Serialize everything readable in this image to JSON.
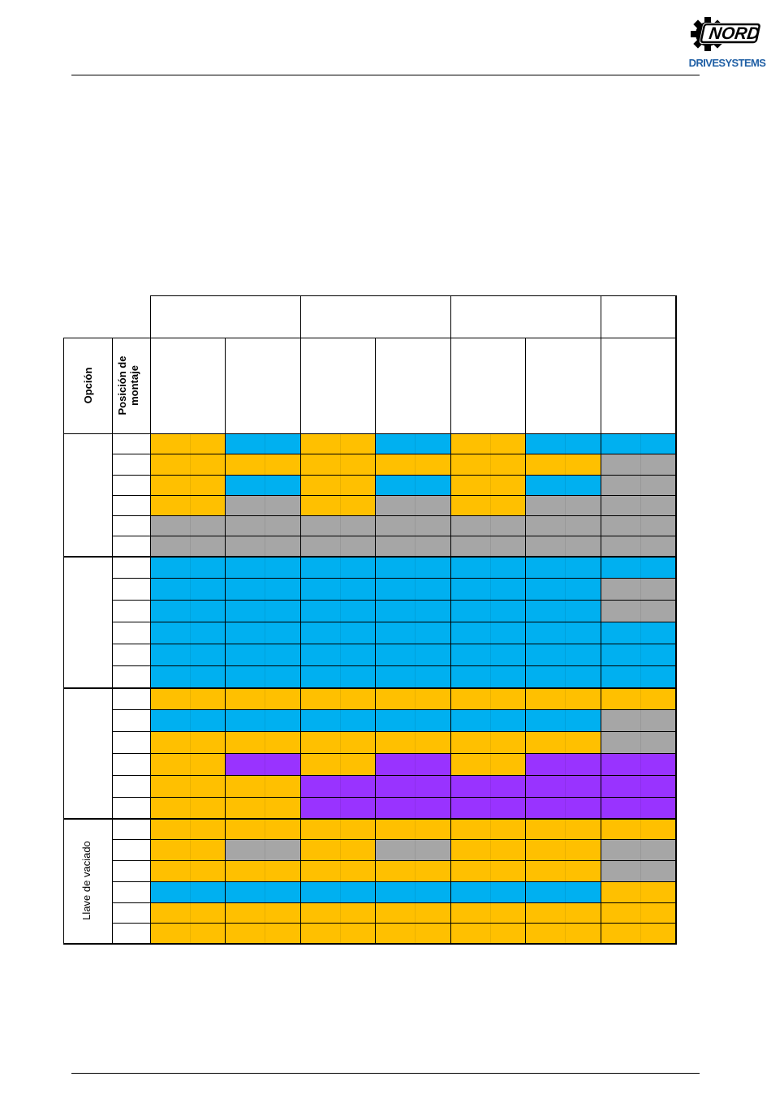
{
  "brand": {
    "logo_text": "NORD",
    "logo_subtitle": "DRIVESYSTEMS"
  },
  "table": {
    "header": {
      "option": "Opción",
      "mounting_position": "Posición de montaje"
    },
    "groups": [
      {
        "label": "",
        "rows": 6
      },
      {
        "label": "",
        "rows": 6
      },
      {
        "label": "",
        "rows": 6
      },
      {
        "label": "Llave de vaciado",
        "rows": 6
      }
    ],
    "colors": {
      "Y": "#ffc000",
      "B": "#00b0f0",
      "G": "#a6a6a6",
      "P": "#9933ff"
    },
    "rows": [
      [
        "Y",
        "B",
        "Y",
        "B",
        "Y",
        "B",
        "B"
      ],
      [
        "Y",
        "Y",
        "Y",
        "Y",
        "Y",
        "Y",
        "G"
      ],
      [
        "Y",
        "B",
        "Y",
        "B",
        "Y",
        "B",
        "G"
      ],
      [
        "Y",
        "G",
        "Y",
        "G",
        "Y",
        "G",
        "G"
      ],
      [
        "G",
        "G",
        "G",
        "G",
        "G",
        "G",
        "G"
      ],
      [
        "G",
        "G",
        "G",
        "G",
        "G",
        "G",
        "G"
      ],
      [
        "B",
        "B",
        "B",
        "B",
        "B",
        "B",
        "B"
      ],
      [
        "B",
        "B",
        "B",
        "B",
        "B",
        "B",
        "G"
      ],
      [
        "B",
        "B",
        "B",
        "B",
        "B",
        "B",
        "G"
      ],
      [
        "B",
        "B",
        "B",
        "B",
        "B",
        "B",
        "B"
      ],
      [
        "B",
        "B",
        "B",
        "B",
        "B",
        "B",
        "B"
      ],
      [
        "B",
        "B",
        "B",
        "B",
        "B",
        "B",
        "B"
      ],
      [
        "Y",
        "Y",
        "Y",
        "Y",
        "Y",
        "Y",
        "Y"
      ],
      [
        "B",
        "B",
        "B",
        "B",
        "B",
        "B",
        "G"
      ],
      [
        "Y",
        "Y",
        "Y",
        "Y",
        "Y",
        "Y",
        "G"
      ],
      [
        "Y",
        "P",
        "Y",
        "P",
        "Y",
        "P",
        "P"
      ],
      [
        "Y",
        "Y",
        "P",
        "P",
        "P",
        "P",
        "P"
      ],
      [
        "Y",
        "Y",
        "P",
        "P",
        "P",
        "P",
        "P"
      ],
      [
        "Y",
        "Y",
        "Y",
        "Y",
        "Y",
        "Y",
        "Y"
      ],
      [
        "Y",
        "G",
        "Y",
        "G",
        "Y",
        "Y",
        "G"
      ],
      [
        "Y",
        "Y",
        "Y",
        "Y",
        "Y",
        "Y",
        "G"
      ],
      [
        "B",
        "B",
        "B",
        "B",
        "B",
        "B",
        "Y"
      ],
      [
        "Y",
        "Y",
        "Y",
        "Y",
        "Y",
        "Y",
        "Y"
      ],
      [
        "Y",
        "Y",
        "Y",
        "Y",
        "Y",
        "Y",
        "Y"
      ]
    ]
  }
}
